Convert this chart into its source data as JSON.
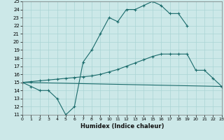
{
  "xlabel": "Humidex (Indice chaleur)",
  "bg_color": "#cce8e8",
  "grid_color": "#aad4d4",
  "line_color": "#1a6b6b",
  "xlim": [
    0,
    23
  ],
  "ylim": [
    11,
    25
  ],
  "xticks": [
    0,
    1,
    2,
    3,
    4,
    5,
    6,
    7,
    8,
    9,
    10,
    11,
    12,
    13,
    14,
    15,
    16,
    17,
    18,
    19,
    20,
    21,
    22,
    23
  ],
  "yticks": [
    11,
    12,
    13,
    14,
    15,
    16,
    17,
    18,
    19,
    20,
    21,
    22,
    23,
    24,
    25
  ],
  "series": [
    {
      "x": [
        0,
        1,
        2,
        3,
        4,
        5,
        6,
        7,
        8,
        9,
        10,
        11,
        12,
        13,
        14,
        15,
        16,
        17,
        18,
        19
      ],
      "y": [
        15,
        14.5,
        14,
        14,
        13,
        11,
        12,
        17.5,
        19,
        21,
        23,
        22.5,
        24,
        24,
        24.5,
        25,
        24.5,
        23.5,
        23.5,
        22
      ]
    },
    {
      "x": [
        0,
        23
      ],
      "y": [
        15,
        14.5
      ]
    },
    {
      "x": [
        0,
        1,
        2,
        3,
        4,
        5,
        6,
        7,
        8,
        9,
        10,
        11,
        12,
        13,
        14,
        15,
        16,
        17,
        18,
        19,
        20,
        21,
        22,
        23
      ],
      "y": [
        15,
        15.1,
        15.2,
        15.3,
        15.4,
        15.5,
        15.6,
        15.7,
        15.8,
        16.0,
        16.3,
        16.6,
        17.0,
        17.4,
        17.8,
        18.2,
        18.5,
        18.5,
        18.5,
        18.5,
        16.5,
        16.5,
        15.5,
        14.5
      ]
    }
  ]
}
